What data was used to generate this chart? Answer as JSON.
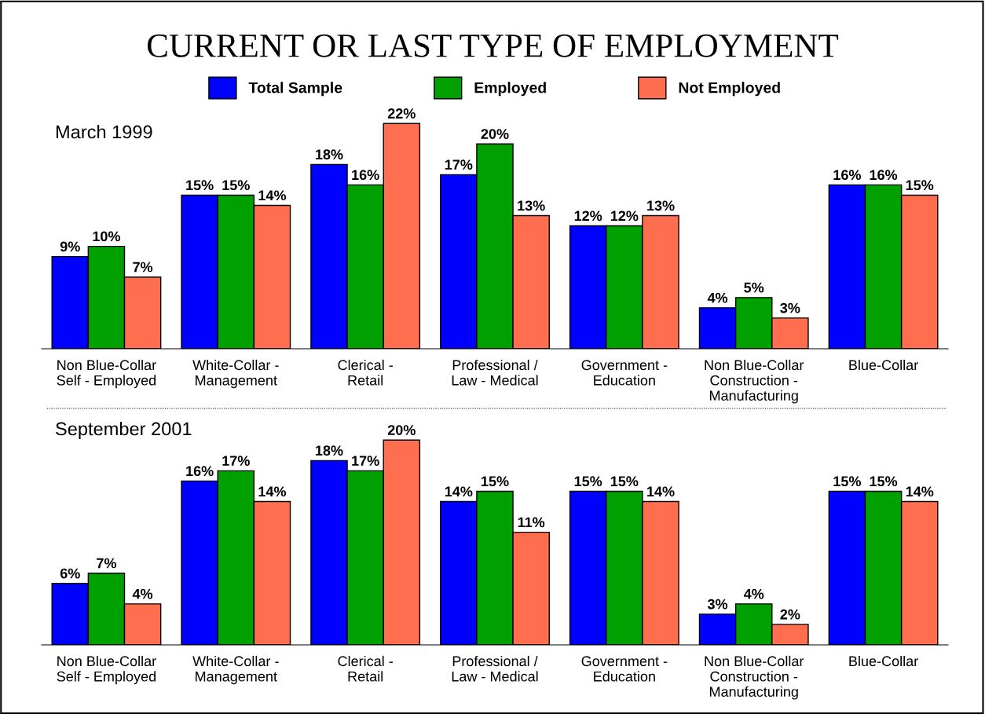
{
  "chart_data": [
    {
      "type": "bar",
      "title": "CURRENT OR LAST TYPE OF EMPLOYMENT",
      "subtitle": "March 1999",
      "categories": [
        "Non Blue-Collar\nSelf - Employed",
        "White-Collar -\nManagement",
        "Clerical -\nRetail",
        "Professional /\nLaw - Medical",
        "Government -\nEducation",
        "Non Blue-Collar\nConstruction -\nManufacturing",
        "Blue-Collar"
      ],
      "series": [
        {
          "name": "Total Sample",
          "color": "#0000ff",
          "values": [
            9,
            15,
            18,
            17,
            12,
            4,
            16
          ],
          "value_labels": [
            "9%",
            "15%",
            "18%",
            "17%",
            "12%",
            "4%",
            "16%"
          ]
        },
        {
          "name": "Employed",
          "color": "#00a000",
          "values": [
            10,
            15,
            16,
            20,
            12,
            5,
            16
          ],
          "value_labels": [
            "10%",
            "15%",
            "16%",
            "20%",
            "12%",
            "5%",
            "16%"
          ]
        },
        {
          "name": "Not Employed",
          "color": "#ff6f4f",
          "values": [
            7,
            14,
            22,
            13,
            13,
            3,
            15
          ],
          "value_labels": [
            "7%",
            "14%",
            "22%",
            "13%",
            "13%",
            "3%",
            "15%"
          ]
        }
      ],
      "legend": "top",
      "tick_labels": "x"
    },
    {
      "type": "bar",
      "subtitle": "September 2001",
      "categories": [
        "Non Blue-Collar\nSelf - Employed",
        "White-Collar -\nManagement",
        "Clerical -\nRetail",
        "Professional /\nLaw - Medical",
        "Government -\nEducation",
        "Non Blue-Collar\nConstruction -\nManufacturing",
        "Blue-Collar"
      ],
      "series": [
        {
          "color": "#0000ff",
          "values": [
            6,
            16,
            18,
            14,
            15,
            3,
            15
          ],
          "value_labels": [
            "6%",
            "16%",
            "18%",
            "14%",
            "15%",
            "3%",
            "15%"
          ]
        },
        {
          "color": "#00a000",
          "values": [
            7,
            17,
            17,
            15,
            15,
            4,
            15
          ],
          "value_labels": [
            "7%",
            "17%",
            "17%",
            "15%",
            "15%",
            "4%",
            "15%"
          ]
        },
        {
          "color": "#ff6f4f",
          "values": [
            4,
            14,
            20,
            11,
            14,
            2,
            14
          ],
          "value_labels": [
            "4%",
            "14%",
            "20%",
            "11%",
            "14%",
            "2%",
            "14%"
          ]
        }
      ],
      "tick_labels": "x"
    }
  ]
}
